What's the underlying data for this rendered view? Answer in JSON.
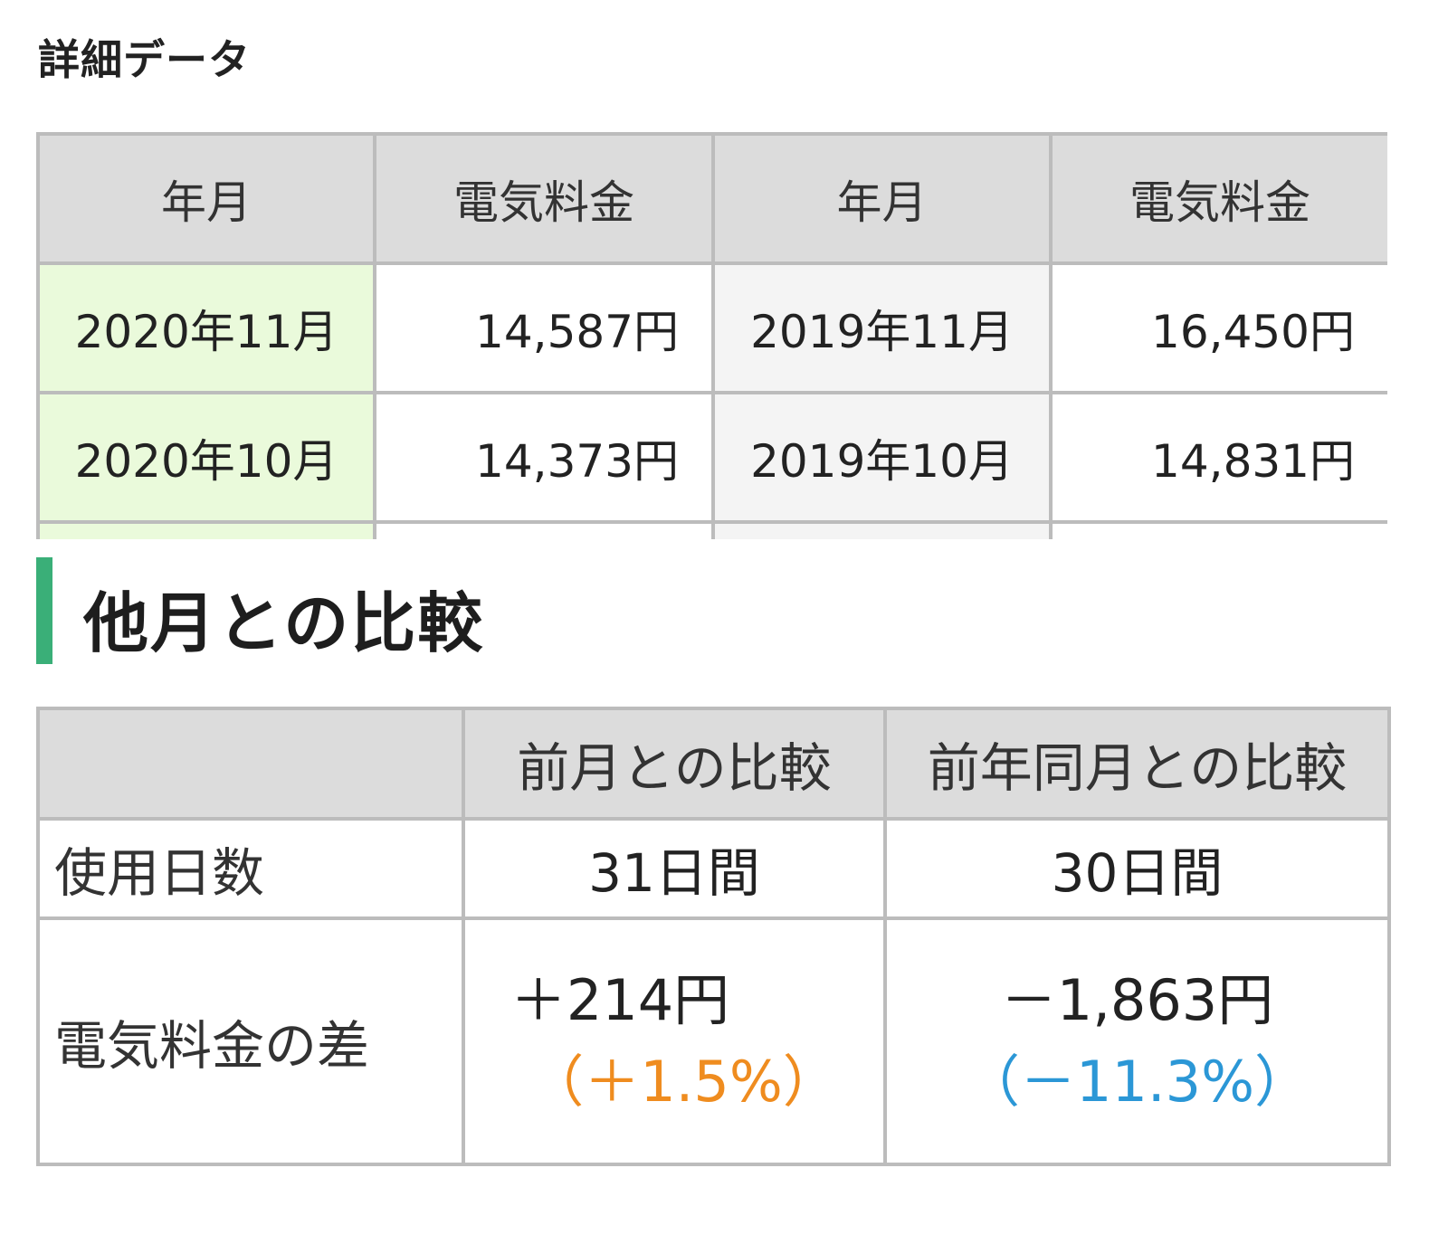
{
  "detail": {
    "title": "詳細データ",
    "headers": [
      "年月",
      "電気料金",
      "年月",
      "電気料金"
    ],
    "rows": [
      {
        "current_ym": "2020年11月",
        "current_amount": "14,587円",
        "prev_ym": "2019年11月",
        "prev_amount": "16,450円"
      },
      {
        "current_ym": "2020年10月",
        "current_amount": "14,373円",
        "prev_ym": "2019年10月",
        "prev_amount": "14,831円"
      }
    ]
  },
  "compare": {
    "title": "他月との比較",
    "headers": [
      "",
      "前月との比較",
      "前年同月との比較"
    ],
    "days": {
      "label": "使用日数",
      "prev_month": "31日間",
      "prev_year": "30日間"
    },
    "diff": {
      "label": "電気料金の差",
      "prev_month_amount": "＋214円",
      "prev_month_pct": "（＋1.5%）",
      "prev_year_amount": "－1,863円",
      "prev_year_pct": "（－11.3%）"
    }
  },
  "colors": {
    "accent_bar": "#3aaf78",
    "current_year_cell": "#eafadb",
    "prev_year_cell": "#f4f4f4",
    "increase": "#ef8c1f",
    "decrease": "#2b97d6"
  }
}
